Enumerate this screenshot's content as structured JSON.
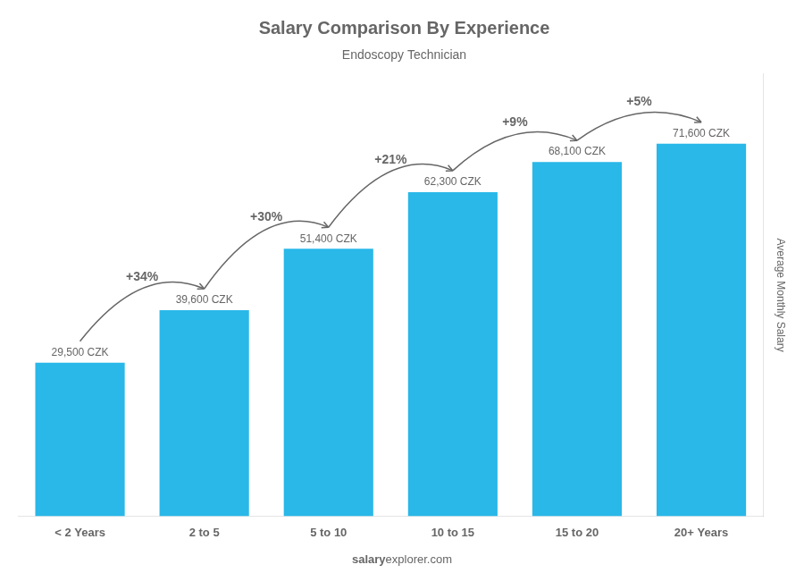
{
  "chart_data": {
    "type": "bar",
    "title": "Salary Comparison By Experience",
    "subtitle": "Endoscopy Technician",
    "y_label": "Average Monthly Salary",
    "categories": [
      "< 2 Years",
      "2 to 5",
      "5 to 10",
      "10 to 15",
      "15 to 20",
      "20+ Years"
    ],
    "values": [
      29500,
      39600,
      51400,
      62300,
      68100,
      71600
    ],
    "value_labels": [
      "29,500 CZK",
      "39,600 CZK",
      "51,400 CZK",
      "62,300 CZK",
      "68,100 CZK",
      "71,600 CZK"
    ],
    "data_labels": true,
    "annotations": [
      "+34%",
      "+30%",
      "+21%",
      "+9%",
      "+5%"
    ],
    "footer": [
      "salary",
      "explorer.com"
    ],
    "color": "#29b8e8",
    "ylim": [
      0,
      85000
    ],
    "grid": false,
    "tick_labels": "x"
  }
}
